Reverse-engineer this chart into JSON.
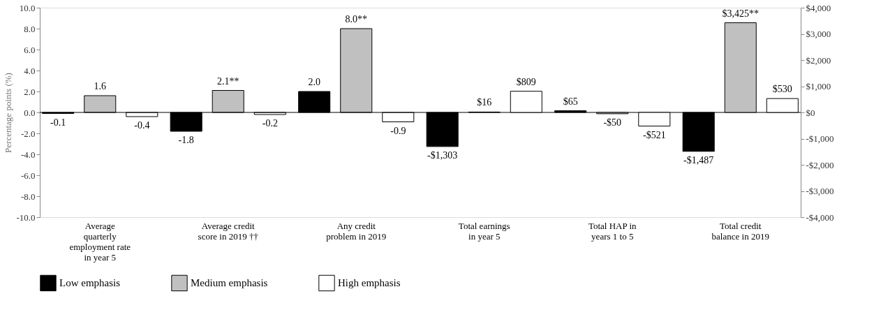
{
  "chart_data": {
    "type": "bar",
    "categories": [
      "Average quarterly employment rate in year 5",
      "Average credit score in 2019 ††",
      "Any credit problem in 2019",
      "Total earnings in year 5",
      "Total HAP in years 1 to 5",
      "Total credit balance in 2019"
    ],
    "ylabel": "Percentage points (%)",
    "ylim": [
      -10,
      10
    ],
    "yticks": [
      {
        "value": -10,
        "label": "-10.0"
      },
      {
        "value": -8,
        "label": "-8.0"
      },
      {
        "value": -6,
        "label": "-6.0"
      },
      {
        "value": -4,
        "label": "-4.0"
      },
      {
        "value": -2,
        "label": "-2.0"
      },
      {
        "value": 0,
        "label": "0.0"
      },
      {
        "value": 2,
        "label": "2.0"
      },
      {
        "value": 4,
        "label": "4.0"
      },
      {
        "value": 6,
        "label": "6.0"
      },
      {
        "value": 8,
        "label": "8.0"
      },
      {
        "value": 10,
        "label": "10.0"
      }
    ],
    "y2lim": [
      -4000,
      4000
    ],
    "y2ticks": [
      {
        "value": -4000,
        "label": "-$4,000"
      },
      {
        "value": -3000,
        "label": "-$3,000"
      },
      {
        "value": -2000,
        "label": "-$2,000"
      },
      {
        "value": -1000,
        "label": "-$1,000"
      },
      {
        "value": 0,
        "label": "$0"
      },
      {
        "value": 1000,
        "label": "$1,000"
      },
      {
        "value": 2000,
        "label": "$2,000"
      },
      {
        "value": 3000,
        "label": "$3,000"
      },
      {
        "value": 4000,
        "label": "$4,000"
      }
    ],
    "series": [
      {
        "name": "Low emphasis",
        "color": "#000000",
        "values": [
          -0.1,
          -1.8,
          2.0,
          null,
          null,
          null
        ],
        "value_labels": [
          "-0.1",
          "-1.8",
          "2.0",
          null,
          null,
          null
        ]
      },
      {
        "name": "Medium emphasis",
        "color": "#c0c0c0",
        "values": [
          1.6,
          2.1,
          8.0,
          null,
          null,
          null
        ],
        "value_labels": [
          "1.6",
          "2.1**",
          "8.0**",
          null,
          null,
          null
        ]
      },
      {
        "name": "High emphasis",
        "color": "#ffffff",
        "values": [
          -0.4,
          -0.2,
          -0.9,
          null,
          null,
          null
        ],
        "value_labels": [
          "-0.4",
          "-0.2",
          "-0.9",
          null,
          null,
          null
        ]
      },
      {
        "color": "#000000",
        "axis": "y2",
        "values": [
          null,
          null,
          null,
          -1303,
          65,
          -1487
        ],
        "value_labels": [
          null,
          null,
          null,
          "-$1,303",
          "$65",
          "-$1,487"
        ]
      },
      {
        "color": "#c0c0c0",
        "axis": "y2",
        "values": [
          null,
          null,
          null,
          16,
          -50,
          3425
        ],
        "value_labels": [
          null,
          null,
          null,
          "$16",
          "-$50",
          "$3,425**"
        ]
      },
      {
        "color": "#ffffff",
        "axis": "y2",
        "values": [
          null,
          null,
          null,
          809,
          -521,
          530
        ],
        "value_labels": [
          null,
          null,
          null,
          "$809",
          "-$521",
          "$530"
        ]
      }
    ],
    "ref_lines": [
      {
        "axis": "y",
        "value": 0,
        "color": "#000000"
      }
    ],
    "legend": "bottom",
    "grid": false
  }
}
